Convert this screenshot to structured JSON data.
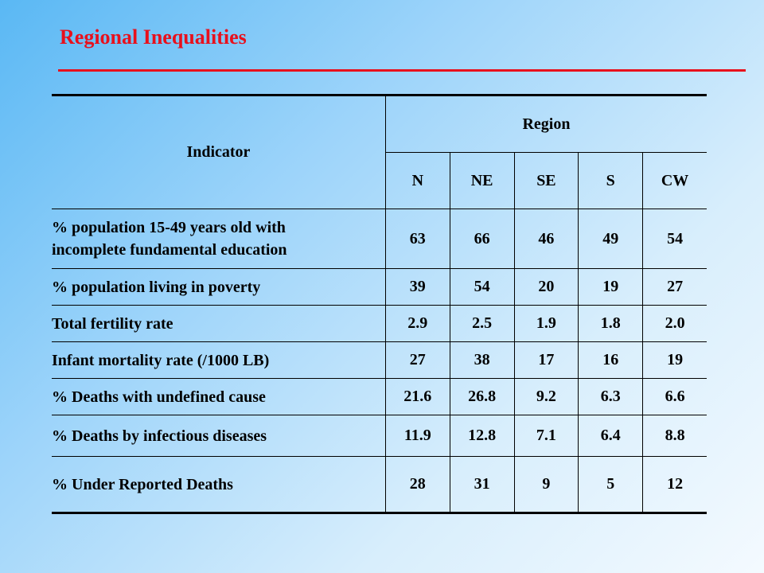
{
  "slide": {
    "title": "Regional Inequalities"
  },
  "table": {
    "indicator_header": "Indicator",
    "region_header": "Region",
    "regions": [
      "N",
      "NE",
      "SE",
      "S",
      "CW"
    ],
    "rows": [
      {
        "label_line1": "% population 15-49 years old with",
        "label_line2": "incomplete fundamental education",
        "values": [
          "63",
          "66",
          "46",
          "49",
          "54"
        ]
      },
      {
        "label": "% population living in poverty",
        "values": [
          "39",
          "54",
          "20",
          "19",
          "27"
        ]
      },
      {
        "label": "Total fertility rate",
        "values": [
          "2.9",
          "2.5",
          "1.9",
          "1.8",
          "2.0"
        ]
      },
      {
        "label": "Infant mortality rate (/1000 LB)",
        "values": [
          "27",
          "38",
          "17",
          "16",
          "19"
        ]
      },
      {
        "label": "% Deaths with undefined cause",
        "values": [
          "21.6",
          "26.8",
          "9.2",
          "6.3",
          "6.6"
        ]
      },
      {
        "label": "% Deaths by infectious diseases",
        "values": [
          "11.9",
          "12.8",
          "7.1",
          "6.4",
          "8.8"
        ]
      },
      {
        "label": "% Under Reported Deaths",
        "values": [
          "28",
          "31",
          "9",
          "5",
          "12"
        ]
      }
    ]
  }
}
